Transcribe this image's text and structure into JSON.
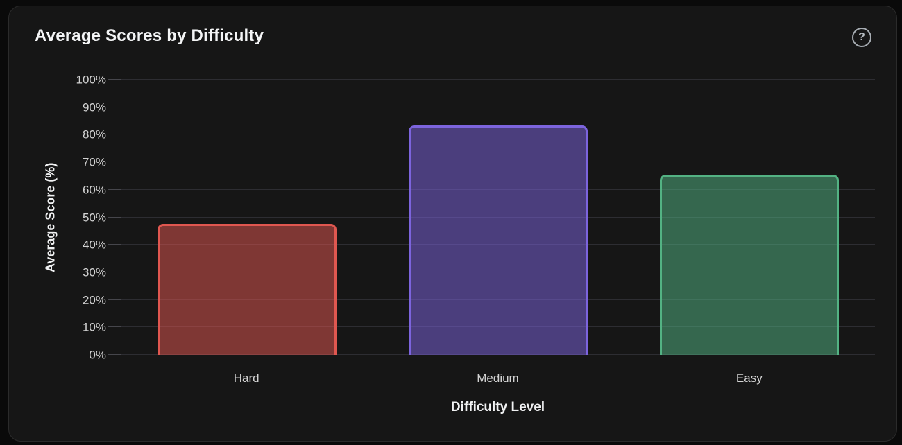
{
  "window": {
    "background_color": "#0a0a0a"
  },
  "card": {
    "title": "Average Scores by Difficulty",
    "help_icon_glyph": "?",
    "background_color": "#161616",
    "border_color": "#2b2b2b"
  },
  "chart_data": {
    "type": "bar",
    "title": "Average Scores by Difficulty",
    "categories": [
      "Hard",
      "Medium",
      "Easy"
    ],
    "values": [
      47.5,
      83.5,
      65.5
    ],
    "xlabel": "Difficulty Level",
    "ylabel": "Average Score (%)",
    "ylim": [
      0,
      100
    ],
    "y_ticks": [
      {
        "value": 0,
        "label": "0%"
      },
      {
        "value": 10,
        "label": "10%"
      },
      {
        "value": 20,
        "label": "20%"
      },
      {
        "value": 30,
        "label": "30%"
      },
      {
        "value": 40,
        "label": "40%"
      },
      {
        "value": 50,
        "label": "50%"
      },
      {
        "value": 60,
        "label": "60%"
      },
      {
        "value": 70,
        "label": "70%"
      },
      {
        "value": 80,
        "label": "80%"
      },
      {
        "value": 90,
        "label": "90%"
      },
      {
        "value": 100,
        "label": "100%"
      }
    ],
    "grid": true,
    "legend": false,
    "bar_styles": [
      {
        "category": "Hard",
        "border_color": "#e05750",
        "fill_color": "rgba(224,87,80,0.52)"
      },
      {
        "category": "Medium",
        "border_color": "#7c64dd",
        "fill_color": "rgba(124,100,221,0.52)"
      },
      {
        "category": "Easy",
        "border_color": "#53b283",
        "fill_color": "rgba(83,178,131,0.52)"
      }
    ],
    "grid_color": "#2d2d32",
    "axis_line_color": "#34343a",
    "tick_mark_color": "#46464c",
    "tick_label_color": "#d2d2d2",
    "axis_title_color": "#f0f1f2"
  }
}
